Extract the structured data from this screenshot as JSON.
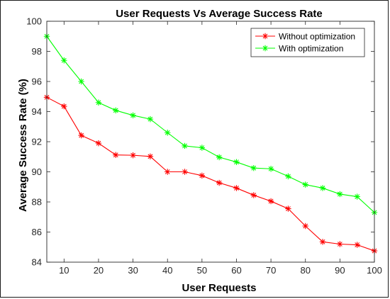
{
  "chart_data": {
    "type": "line",
    "title": "User Requests Vs Average Success Rate",
    "xlabel": "User Requests",
    "ylabel": "Average Success Rate (%)",
    "xlim": [
      5,
      100
    ],
    "ylim": [
      84,
      100
    ],
    "xticks": [
      10,
      20,
      30,
      40,
      50,
      60,
      70,
      80,
      90,
      100
    ],
    "yticks": [
      84,
      86,
      88,
      90,
      92,
      94,
      96,
      98,
      100
    ],
    "grid": false,
    "legend_position": "top-right",
    "x": [
      5,
      10,
      15,
      20,
      25,
      30,
      35,
      40,
      45,
      50,
      55,
      60,
      65,
      70,
      75,
      80,
      85,
      90,
      95,
      100
    ],
    "series": [
      {
        "name": "Without optimization",
        "color": "#ff0000",
        "marker": "asterisk",
        "values": [
          94.95,
          94.35,
          92.42,
          91.9,
          91.12,
          91.1,
          91.02,
          90.0,
          90.0,
          89.75,
          89.27,
          88.92,
          88.45,
          88.05,
          87.55,
          86.4,
          85.35,
          85.2,
          85.15,
          84.75
        ]
      },
      {
        "name": "With optimization",
        "color": "#00ff00",
        "marker": "asterisk",
        "values": [
          99.0,
          97.4,
          96.0,
          94.6,
          94.08,
          93.75,
          93.5,
          92.6,
          91.72,
          91.6,
          90.97,
          90.65,
          90.25,
          90.2,
          89.7,
          89.15,
          88.92,
          88.52,
          88.35,
          87.3
        ]
      }
    ]
  }
}
